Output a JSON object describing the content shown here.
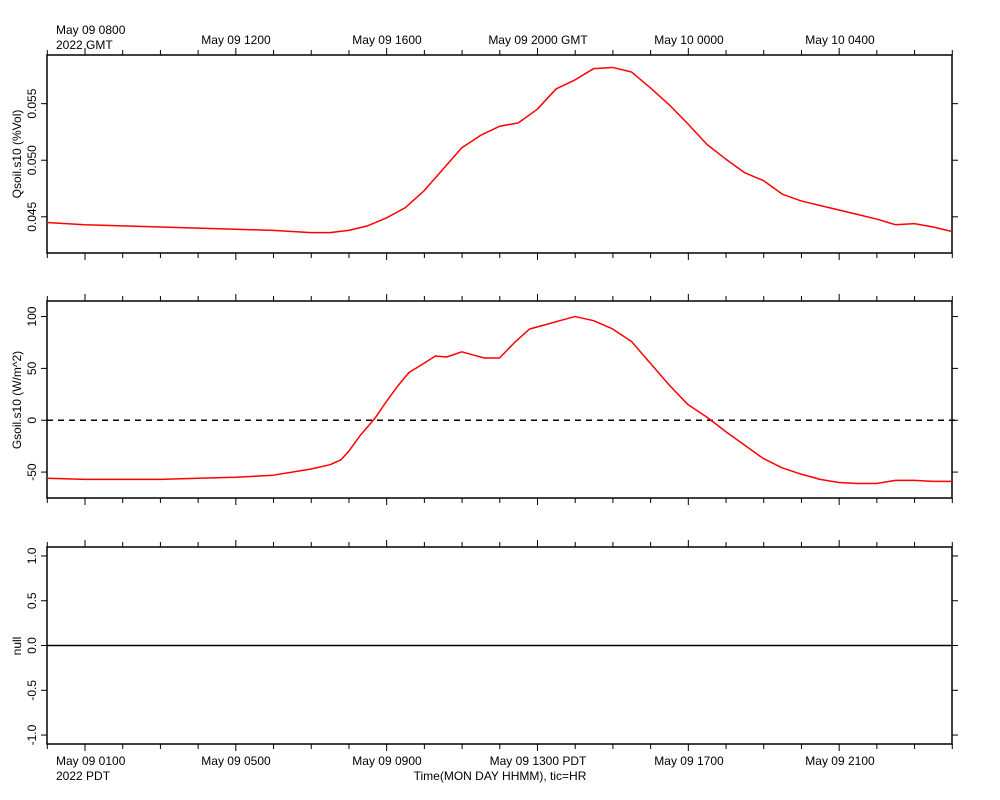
{
  "top_axis": {
    "first_label_line1": "May 09 0800",
    "first_label_line2": "2022 GMT",
    "labels": [
      "May 09 1200",
      "May 09 1600",
      "May 09 2000 GMT",
      "May 10 0000",
      "May 10 0400"
    ]
  },
  "bottom_axis": {
    "first_label_line1": "May 09 0100",
    "first_label_line2": "2022 PDT",
    "labels": [
      "May 09 0500",
      "May 09 0900",
      "May 09 1300 PDT",
      "May 09 1700",
      "May 09 2100"
    ],
    "title": "Time(MON DAY HHMM), tic=HR"
  },
  "colors": {
    "series": "#ff0000",
    "axis": "#000000",
    "zero_line": "#000000"
  },
  "chart_data": [
    {
      "type": "line",
      "ylabel": "Qsoil.s10 (%Vol)",
      "ylim": [
        0.0418,
        0.0593
      ],
      "yticks": [
        0.045,
        0.05,
        0.055
      ],
      "ytick_labels": [
        "0.045",
        "0.050",
        "0.055"
      ],
      "x_hours_since_0800_GMT": [
        0,
        1,
        2,
        3,
        4,
        5,
        6,
        6.5,
        7,
        7.5,
        8,
        8.5,
        9,
        9.5,
        10,
        10.5,
        11,
        11.5,
        12,
        12.5,
        13,
        13.5,
        14,
        14.5,
        15,
        15.5,
        16,
        16.5,
        17,
        17.5,
        18,
        18.5,
        19,
        19.5,
        20,
        20.5,
        21,
        21.5,
        22,
        22.5,
        23,
        23.5,
        24
      ],
      "values": [
        0.0445,
        0.0443,
        0.0442,
        0.0441,
        0.044,
        0.0439,
        0.0438,
        0.0437,
        0.0436,
        0.0436,
        0.0438,
        0.0442,
        0.0449,
        0.0458,
        0.0473,
        0.0492,
        0.0511,
        0.0522,
        0.053,
        0.0533,
        0.0545,
        0.0563,
        0.0571,
        0.0581,
        0.0582,
        0.0578,
        0.0564,
        0.0549,
        0.0532,
        0.0514,
        0.0501,
        0.0489,
        0.0482,
        0.047,
        0.0464,
        0.046,
        0.0456,
        0.0452,
        0.0448,
        0.0443,
        0.0444,
        0.0441,
        0.0437
      ],
      "series": [
        {
          "values_ref": "values",
          "color": "#ff0000"
        }
      ]
    },
    {
      "type": "line",
      "ylabel": "Gsoil.s10 (W/m^2)",
      "ylim": [
        -75,
        115
      ],
      "yticks": [
        -50,
        0,
        50,
        100
      ],
      "ytick_labels": [
        "-50",
        "0",
        "50",
        "100"
      ],
      "reference_line": {
        "y": 0,
        "style": "dashed"
      },
      "x_hours_since_0800_GMT": [
        0,
        1,
        2,
        3,
        4,
        5,
        6,
        6.5,
        7,
        7.5,
        7.8,
        8.0,
        8.3,
        8.7,
        9.0,
        9.3,
        9.6,
        10.0,
        10.3,
        10.6,
        11.0,
        11.3,
        11.6,
        12.0,
        12.4,
        12.8,
        13.2,
        13.6,
        14.0,
        14.5,
        15.0,
        15.5,
        16.0,
        16.5,
        17.0,
        17.5,
        18.0,
        18.5,
        19.0,
        19.5,
        20.0,
        20.5,
        21.0,
        21.5,
        22.0,
        22.5,
        23.0,
        23.5,
        24
      ],
      "values": [
        -56,
        -57,
        -57,
        -57,
        -56,
        -55,
        -53,
        -50,
        -47,
        -43,
        -38,
        -30,
        -15,
        2,
        18,
        33,
        46,
        55,
        62,
        61,
        66,
        63,
        60,
        60,
        75,
        88,
        92,
        96,
        100,
        96,
        88,
        76,
        55,
        34,
        15,
        3,
        -11,
        -24,
        -37,
        -46,
        -52,
        -57,
        -60,
        -61,
        -61,
        -58,
        -58,
        -59,
        -59
      ],
      "series": [
        {
          "values_ref": "values",
          "color": "#ff0000"
        }
      ]
    },
    {
      "type": "line",
      "ylabel": "null",
      "ylim": [
        -1.1,
        1.1
      ],
      "yticks": [
        -1.0,
        -0.5,
        0.0,
        0.5,
        1.0
      ],
      "ytick_labels": [
        "-1.0",
        "-0.5",
        "0.0",
        "0.5",
        "1.0"
      ],
      "x_hours_since_0800_GMT": [
        0,
        24
      ],
      "values": [
        0,
        0
      ],
      "series": [
        {
          "values_ref": "values",
          "color": "#000000"
        }
      ]
    }
  ]
}
